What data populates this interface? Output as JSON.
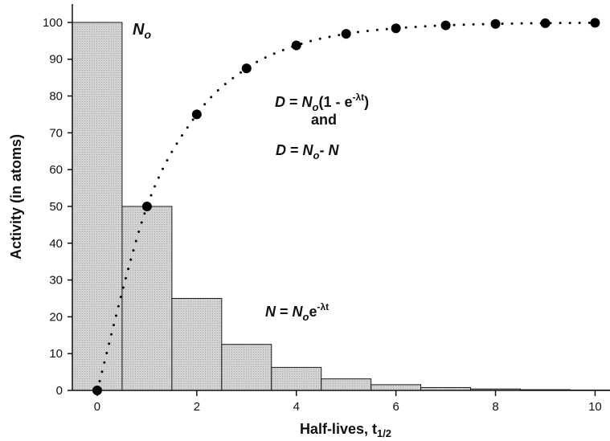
{
  "chart_data": {
    "type": "bar",
    "title": "",
    "xlabel": "Half-lives, t",
    "xlabel_sub": "1/2",
    "ylabel": "Activity (in atoms)",
    "xlim": [
      -0.5,
      10.3
    ],
    "ylim": [
      0,
      105
    ],
    "xticks": [
      0,
      2,
      4,
      6,
      8,
      10
    ],
    "yticks": [
      0,
      10,
      20,
      30,
      40,
      50,
      60,
      70,
      80,
      90,
      100
    ],
    "series": [
      {
        "kind": "bar",
        "x": [
          0,
          1,
          2,
          3,
          4,
          5,
          6,
          7,
          8,
          9,
          10
        ],
        "values": [
          100,
          50,
          25,
          12.5,
          6.25,
          3.13,
          1.56,
          0.78,
          0.39,
          0.2,
          0.1
        ]
      },
      {
        "kind": "dotted-line-markers",
        "x": [
          0,
          1,
          2,
          3,
          4,
          5,
          6,
          7,
          8,
          9,
          10
        ],
        "values": [
          0,
          50,
          75,
          87.5,
          93.75,
          96.9,
          98.4,
          99.2,
          99.6,
          99.8,
          99.9
        ]
      }
    ],
    "colors": {
      "bar_fill": "#d2d2d2",
      "bar_stroke": "#1a1a1a",
      "marker": "#000000"
    },
    "annotations": {
      "n0": {
        "main": "N",
        "sub": "o"
      },
      "d_eq": {
        "a": "D",
        "b": " = ",
        "c": "N",
        "sub": "o",
        "d": "(1 - e",
        "sup": "-λt",
        "e": ")"
      },
      "and_text": "and",
      "d_eq2": {
        "a": "D",
        "b": " = ",
        "c": "N",
        "sub": "o",
        "d": "- ",
        "e": "N"
      },
      "n_eq": {
        "a": "N",
        "b": " = ",
        "c": "N",
        "sub": "o",
        "d": "e",
        "sup": "-λt"
      }
    }
  }
}
